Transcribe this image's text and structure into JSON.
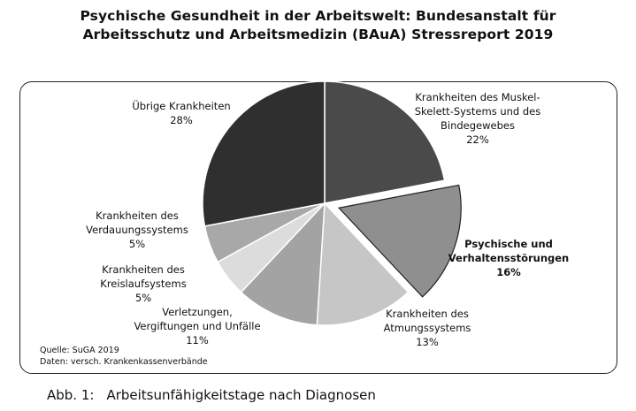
{
  "header": {
    "title_line1": "Psychische Gesundheit in der Arbeitswelt: Bundesanstalt für",
    "title_line2": "Arbeitsschutz und Arbeitsmedizin (BAuA) Stressreport 2019"
  },
  "chart_data": {
    "type": "pie",
    "unit": "%",
    "slices": [
      {
        "label_lines": [
          "Krankheiten des Muskel-",
          "Skelett-Systems und des",
          "Bindegewebes"
        ],
        "value": 22,
        "value_label": "22%",
        "color": "#4a4a4a",
        "exploded": false,
        "bold": false
      },
      {
        "label_lines": [
          "Psychische und",
          "Verhaltensstörungen"
        ],
        "value": 16,
        "value_label": "16%",
        "color": "#8f8f8f",
        "exploded": true,
        "bold": true
      },
      {
        "label_lines": [
          "Krankheiten des",
          "Atmungssystems"
        ],
        "value": 13,
        "value_label": "13%",
        "color": "#c6c6c6",
        "exploded": false,
        "bold": false
      },
      {
        "label_lines": [
          "Verletzungen,",
          "Vergiftungen und Unfälle"
        ],
        "value": 11,
        "value_label": "11%",
        "color": "#a3a3a3",
        "exploded": false,
        "bold": false
      },
      {
        "label_lines": [
          "Krankheiten des",
          "Kreislaufsystems"
        ],
        "value": 5,
        "value_label": "5%",
        "color": "#dcdcdc",
        "exploded": false,
        "bold": false
      },
      {
        "label_lines": [
          "Krankheiten des",
          "Verdauungssystems"
        ],
        "value": 5,
        "value_label": "5%",
        "color": "#a8a8a8",
        "exploded": false,
        "bold": false
      },
      {
        "label_lines": [
          "Übrige Krankheiten"
        ],
        "value": 28,
        "value_label": "28%",
        "color": "#2f2f2f",
        "exploded": false,
        "bold": false
      }
    ]
  },
  "source": {
    "line1": "Quelle: SuGA 2019",
    "line2": "Daten: versch. Krankenkassenverbände"
  },
  "caption": {
    "number": "Abb. 1:",
    "text": "Arbeitsunfähigkeitstage nach Diagnosen"
  }
}
